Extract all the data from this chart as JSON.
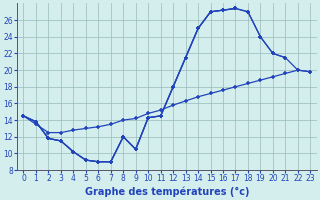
{
  "xlabel": "Graphe des températures (°c)",
  "background_color": "#d4eeed",
  "line_color": "#2244bb",
  "grid_color": "#99bbbb",
  "hours": [
    0,
    1,
    2,
    3,
    4,
    5,
    6,
    7,
    8,
    9,
    10,
    11,
    12,
    13,
    14,
    15,
    16,
    17,
    18,
    19,
    20,
    21,
    22,
    23
  ],
  "line1": [
    14.5,
    13.8,
    11.8,
    11.5,
    10.2,
    9.2,
    9.0,
    9.0,
    12.0,
    10.5,
    14.3,
    14.5,
    18.0,
    21.5,
    25.0,
    27.0,
    27.2,
    27.4,
    null,
    null,
    null,
    null,
    null,
    null
  ],
  "line2": [
    14.5,
    13.8,
    11.8,
    11.5,
    10.2,
    9.2,
    9.0,
    9.0,
    12.0,
    10.5,
    14.3,
    14.5,
    18.0,
    21.5,
    25.0,
    27.0,
    27.2,
    27.4,
    27.0,
    24.0,
    22.0,
    21.5,
    null,
    null
  ],
  "line3": [
    14.5,
    13.8,
    11.8,
    11.5,
    10.2,
    9.2,
    9.0,
    9.0,
    12.0,
    10.5,
    14.3,
    14.5,
    18.0,
    21.5,
    25.0,
    27.0,
    27.2,
    27.4,
    27.0,
    24.0,
    22.0,
    21.5,
    20.0,
    19.8
  ],
  "line4": [
    14.5,
    13.5,
    12.5,
    12.5,
    12.8,
    13.0,
    13.2,
    13.5,
    14.0,
    14.2,
    14.8,
    15.2,
    15.8,
    16.3,
    16.8,
    17.2,
    17.6,
    18.0,
    18.4,
    18.8,
    19.2,
    19.6,
    20.0,
    19.8
  ],
  "xlim": [
    -0.5,
    23.5
  ],
  "ylim": [
    8,
    28
  ],
  "yticks": [
    8,
    10,
    12,
    14,
    16,
    18,
    20,
    22,
    24,
    26
  ],
  "xticks": [
    0,
    1,
    2,
    3,
    4,
    5,
    6,
    7,
    8,
    9,
    10,
    11,
    12,
    13,
    14,
    15,
    16,
    17,
    18,
    19,
    20,
    21,
    22,
    23
  ]
}
